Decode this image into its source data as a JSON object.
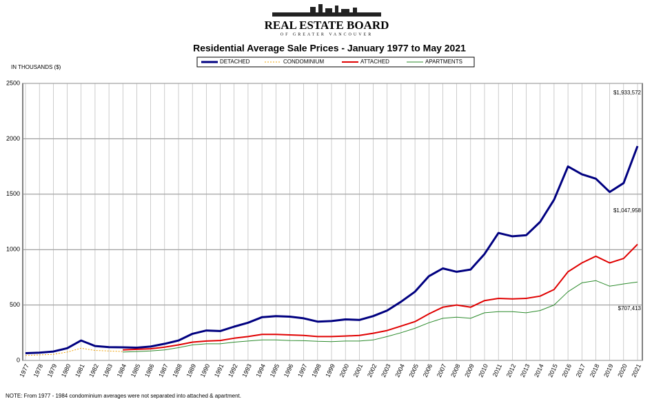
{
  "header": {
    "logo": "REAL ESTATE BOARD",
    "logo_sub": "OF GREATER VANCOUVER"
  },
  "chart_data": {
    "type": "line",
    "title": "Residential Average Sale Prices  -  January 1977 to May 2021",
    "y_label": "IN THOUSANDS ($)",
    "categories": [
      "1977",
      "1978",
      "1979",
      "1980",
      "1981",
      "1982",
      "1983",
      "1984",
      "1985",
      "1986",
      "1987",
      "1988",
      "1989",
      "1990",
      "1991",
      "1992",
      "1993",
      "1994",
      "1995",
      "1996",
      "1997",
      "1998",
      "1999",
      "2000",
      "2001",
      "2002",
      "2003",
      "2004",
      "2005",
      "2006",
      "2007",
      "2008",
      "2009",
      "2010",
      "2011",
      "2012",
      "2013",
      "2014",
      "2015",
      "2016",
      "2017",
      "2018",
      "2019",
      "2020",
      "2021"
    ],
    "series": [
      {
        "name": "DETACHED",
        "color": "#000080",
        "values": [
          65,
          70,
          80,
          110,
          180,
          130,
          120,
          118,
          115,
          125,
          150,
          180,
          240,
          270,
          265,
          305,
          340,
          390,
          400,
          395,
          380,
          350,
          355,
          370,
          365,
          400,
          450,
          530,
          620,
          760,
          830,
          800,
          820,
          960,
          1150,
          1120,
          1130,
          1250,
          1450,
          1750,
          1680,
          1640,
          1520,
          1600,
          1934
        ]
      },
      {
        "name": "CONDOMINIUM",
        "color": "#f0a000",
        "values": [
          45,
          50,
          55,
          75,
          110,
          90,
          85,
          80,
          null,
          null,
          null,
          null,
          null,
          null,
          null,
          null,
          null,
          null,
          null,
          null,
          null,
          null,
          null,
          null,
          null,
          null,
          null,
          null,
          null,
          null,
          null,
          null,
          null,
          null,
          null,
          null,
          null,
          null,
          null,
          null,
          null,
          null,
          null,
          null,
          null
        ]
      },
      {
        "name": "ATTACHED",
        "color": "#e00000",
        "values": [
          null,
          null,
          null,
          null,
          null,
          null,
          null,
          95,
          100,
          105,
          120,
          140,
          165,
          175,
          180,
          200,
          215,
          235,
          235,
          230,
          225,
          215,
          215,
          220,
          225,
          245,
          270,
          310,
          350,
          420,
          480,
          500,
          480,
          540,
          560,
          555,
          560,
          580,
          640,
          800,
          880,
          940,
          880,
          920,
          1048
        ]
      },
      {
        "name": "APARTMENTS",
        "color": "#2a8a2a",
        "values": [
          null,
          null,
          null,
          null,
          null,
          null,
          null,
          75,
          80,
          85,
          95,
          115,
          140,
          150,
          150,
          165,
          175,
          185,
          185,
          180,
          178,
          172,
          170,
          175,
          175,
          185,
          215,
          250,
          290,
          340,
          380,
          390,
          380,
          430,
          440,
          440,
          430,
          450,
          500,
          620,
          700,
          720,
          670,
          690,
          707
        ]
      }
    ],
    "ylim": [
      0,
      2500
    ],
    "yticks": [
      0,
      500,
      1000,
      1500,
      2000,
      2500
    ],
    "grid": true,
    "annotations": [
      "$1,933,572",
      "$1,047,958",
      "$707,413"
    ],
    "note": "NOTE:  From 1977 - 1984 condominium averages were not separated into attached & apartment."
  }
}
